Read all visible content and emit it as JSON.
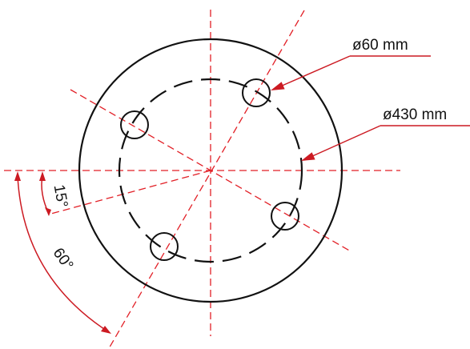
{
  "labels": {
    "hole_diameter": "ø60 mm",
    "bolt_circle_diameter": "ø430 mm",
    "angle_small": "15°",
    "angle_large": "60°"
  },
  "colors": {
    "outline": "#111111",
    "centerline": "#e21f26",
    "dimension": "#cc1a22"
  }
}
